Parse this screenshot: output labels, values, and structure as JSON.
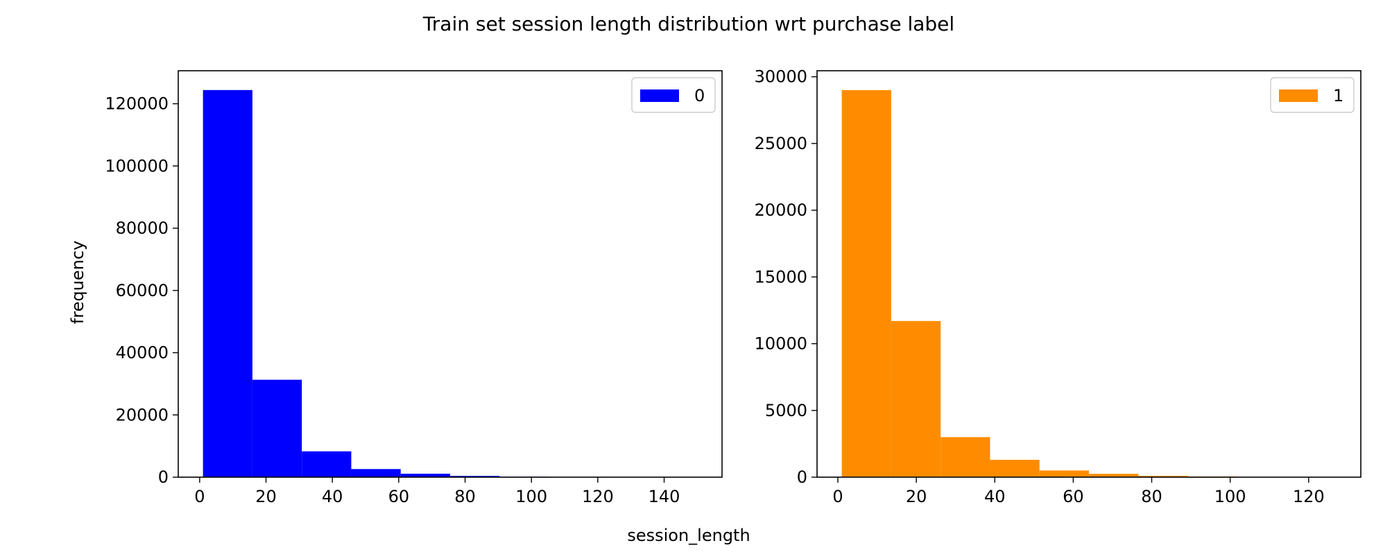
{
  "figure": {
    "title": "Train set session length distribution wrt purchase label",
    "xlabel": "session_length",
    "ylabel": "frequency"
  },
  "chart_data": [
    {
      "type": "bar",
      "subtype": "histogram",
      "series": [
        {
          "name": "0",
          "color": "#0000ff",
          "bins": [
            {
              "x0": 1,
              "x1": 15.9,
              "value": 124400
            },
            {
              "x0": 15.9,
              "x1": 30.8,
              "value": 31300
            },
            {
              "x0": 30.8,
              "x1": 45.7,
              "value": 8300
            },
            {
              "x0": 45.7,
              "x1": 60.6,
              "value": 2600
            },
            {
              "x0": 60.6,
              "x1": 75.5,
              "value": 1100
            },
            {
              "x0": 75.5,
              "x1": 90.4,
              "value": 400
            },
            {
              "x0": 90.4,
              "x1": 105.3,
              "value": 150
            },
            {
              "x0": 105.3,
              "x1": 120.2,
              "value": 60
            },
            {
              "x0": 120.2,
              "x1": 135.1,
              "value": 30
            },
            {
              "x0": 135.1,
              "x1": 150,
              "value": 15
            }
          ]
        }
      ],
      "xlim": [
        -6.45,
        157.45
      ],
      "ylim": [
        0,
        130600
      ],
      "xticks": [
        0,
        20,
        40,
        60,
        80,
        100,
        120,
        140
      ],
      "yticks": [
        0,
        20000,
        40000,
        60000,
        80000,
        100000,
        120000
      ],
      "legend": "top-right",
      "grid": false
    },
    {
      "type": "bar",
      "subtype": "histogram",
      "series": [
        {
          "name": "1",
          "color": "#ff8c00",
          "bins": [
            {
              "x0": 1,
              "x1": 13.6,
              "value": 29000
            },
            {
              "x0": 13.6,
              "x1": 26.2,
              "value": 11700
            },
            {
              "x0": 26.2,
              "x1": 38.8,
              "value": 3000
            },
            {
              "x0": 38.8,
              "x1": 51.4,
              "value": 1300
            },
            {
              "x0": 51.4,
              "x1": 64,
              "value": 500
            },
            {
              "x0": 64,
              "x1": 76.6,
              "value": 250
            },
            {
              "x0": 76.6,
              "x1": 89.2,
              "value": 100
            },
            {
              "x0": 89.2,
              "x1": 101.8,
              "value": 50
            },
            {
              "x0": 101.8,
              "x1": 114.4,
              "value": 20
            },
            {
              "x0": 114.4,
              "x1": 127,
              "value": 10
            }
          ]
        }
      ],
      "xlim": [
        -5.3,
        133.3
      ],
      "ylim": [
        0,
        30450
      ],
      "xticks": [
        0,
        20,
        40,
        60,
        80,
        100,
        120
      ],
      "yticks": [
        0,
        5000,
        10000,
        15000,
        20000,
        25000,
        30000
      ],
      "legend": "top-right",
      "grid": false
    }
  ]
}
